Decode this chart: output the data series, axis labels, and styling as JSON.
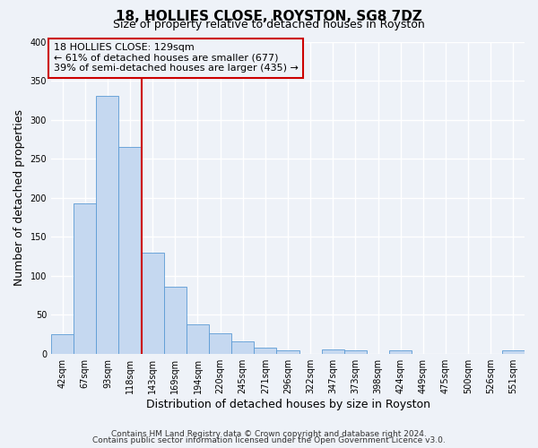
{
  "title": "18, HOLLIES CLOSE, ROYSTON, SG8 7DZ",
  "subtitle": "Size of property relative to detached houses in Royston",
  "xlabel": "Distribution of detached houses by size in Royston",
  "ylabel": "Number of detached properties",
  "bin_labels": [
    "42sqm",
    "67sqm",
    "93sqm",
    "118sqm",
    "143sqm",
    "169sqm",
    "194sqm",
    "220sqm",
    "245sqm",
    "271sqm",
    "296sqm",
    "322sqm",
    "347sqm",
    "373sqm",
    "398sqm",
    "424sqm",
    "449sqm",
    "475sqm",
    "500sqm",
    "526sqm",
    "551sqm"
  ],
  "bar_values": [
    25,
    193,
    330,
    265,
    130,
    86,
    38,
    26,
    16,
    8,
    4,
    0,
    5,
    4,
    0,
    4,
    0,
    0,
    0,
    0,
    4
  ],
  "bar_color": "#c5d8f0",
  "bar_edge_color": "#5b9bd5",
  "vline_x": 3.5,
  "vline_color": "#cc0000",
  "annotation_line1": "18 HOLLIES CLOSE: 129sqm",
  "annotation_line2": "← 61% of detached houses are smaller (677)",
  "annotation_line3": "39% of semi-detached houses are larger (435) →",
  "annotation_box_edgecolor": "#cc0000",
  "ylim": [
    0,
    400
  ],
  "yticks": [
    0,
    50,
    100,
    150,
    200,
    250,
    300,
    350,
    400
  ],
  "footer1": "Contains HM Land Registry data © Crown copyright and database right 2024.",
  "footer2": "Contains public sector information licensed under the Open Government Licence v3.0.",
  "bg_color": "#eef2f8",
  "plot_bg_color": "#eef2f8",
  "grid_color": "#ffffff",
  "title_fontsize": 11,
  "subtitle_fontsize": 9,
  "axis_label_fontsize": 9,
  "tick_fontsize": 7,
  "annotation_fontsize": 8,
  "footer_fontsize": 6.5
}
